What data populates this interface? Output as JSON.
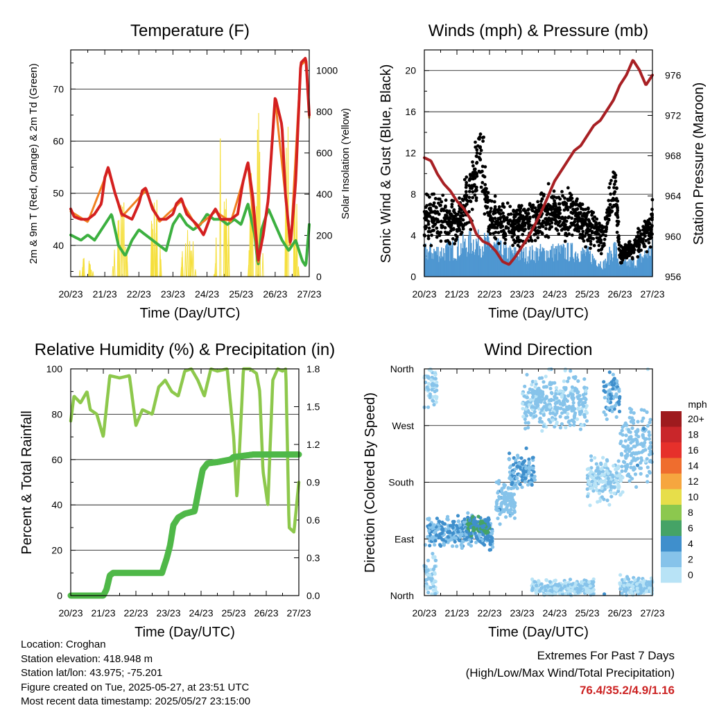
{
  "charts": {
    "temperature": {
      "title": "Temperature (F)",
      "ylabel_left": "2m & 9m T (Red, Orange) & 2m Td (Green)",
      "ylabel_right": "Solar Insolation (Yellow)",
      "xlabel": "Time (Day/UTC)"
    },
    "winds": {
      "title": "Winds (mph) & Pressure (mb)",
      "ylabel_left": "Sonic Wind & Gust (Blue, Black)",
      "ylabel_right": "Station Pressure (Maroon)",
      "xlabel": "Time (Day/UTC)"
    },
    "humidity": {
      "title": "Relative Humidity (%) & Precipitation (in)",
      "ylabel_left": "Percent & Total Rainfall",
      "xlabel": "Time (Day/UTC)"
    },
    "direction": {
      "title": "Wind Direction",
      "ylabel_left": "Direction (Colored By Speed)",
      "xlabel": "Time (Day/UTC)",
      "colorbar_title": "mph"
    }
  },
  "chart_data": [
    {
      "type": "line",
      "title": "Temperature (F)",
      "xlabel": "Time (Day/UTC)",
      "ylabel": "2m & 9m T (Red, Orange) & 2m Td (Green)",
      "ylabel_right": "Solar Insolation (Yellow)",
      "x_ticks": [
        "20/23",
        "21/23",
        "22/23",
        "23/23",
        "24/23",
        "25/23",
        "26/23",
        "27/23"
      ],
      "ylim": [
        34,
        77.5
      ],
      "yticks": [
        40,
        50,
        60,
        70
      ],
      "ylim_right": [
        0,
        1100
      ],
      "yticks_right": [
        0,
        200,
        400,
        600,
        800,
        1000
      ],
      "grid": true,
      "series": [
        {
          "name": "2m T",
          "color": "#d42020",
          "axis": "left",
          "x": [
            0,
            0.1,
            0.3,
            0.5,
            0.7,
            0.9,
            1.0,
            1.1,
            1.3,
            1.5,
            1.8,
            2.0,
            2.1,
            2.2,
            2.4,
            2.6,
            2.8,
            3.0,
            3.1,
            3.25,
            3.4,
            3.7,
            3.9,
            4.1,
            4.25,
            4.4,
            4.7,
            4.9,
            5.05,
            5.2,
            5.35,
            5.5,
            5.65,
            5.8,
            6.0,
            6.2,
            6.3,
            6.45,
            6.6,
            6.75,
            6.9,
            7.0
          ],
          "values": [
            47,
            45.5,
            45,
            45,
            46,
            48,
            53,
            55,
            50,
            46,
            45,
            48,
            50.5,
            51,
            47,
            45,
            45,
            46,
            48,
            49,
            46,
            44,
            42,
            45.5,
            47,
            45,
            45,
            46,
            52,
            56,
            49,
            37,
            42,
            49,
            68.5,
            63,
            50,
            40,
            52,
            75,
            76,
            65
          ]
        },
        {
          "name": "9m T",
          "color": "#f08020",
          "axis": "left",
          "x": [
            0,
            0.5,
            1.1,
            1.5,
            2.2,
            2.6,
            3.25,
            3.7,
            4.25,
            4.7,
            5.2,
            5.5,
            5.8,
            6.0,
            6.3,
            6.45,
            6.75,
            6.9,
            7.0
          ],
          "values": [
            46.5,
            44.5,
            54.5,
            45.5,
            50.5,
            44.5,
            48.5,
            43.5,
            46.5,
            44.5,
            55.5,
            36.5,
            48.5,
            68,
            49.5,
            39.5,
            74.5,
            75.5,
            64.5
          ]
        },
        {
          "name": "2m Td",
          "color": "#3cb040",
          "axis": "left",
          "x": [
            0,
            0.3,
            0.5,
            0.7,
            1.0,
            1.2,
            1.4,
            1.6,
            1.8,
            2.0,
            2.2,
            2.4,
            2.6,
            2.8,
            3.0,
            3.2,
            3.4,
            3.6,
            3.8,
            4.0,
            4.2,
            4.4,
            4.6,
            4.8,
            5.0,
            5.2,
            5.4,
            5.5,
            5.6,
            5.8,
            6.0,
            6.2,
            6.4,
            6.6,
            6.8,
            6.9,
            7.0
          ],
          "values": [
            42,
            41,
            42,
            41,
            44,
            46,
            40,
            38,
            41,
            43,
            42,
            41,
            40,
            39,
            44,
            46,
            44,
            43,
            44,
            46,
            45,
            45,
            44,
            45,
            44,
            48,
            42,
            36,
            43,
            47,
            44,
            41,
            39,
            41,
            37,
            36,
            44
          ]
        },
        {
          "name": "Solar Insolation",
          "color": "#f5df3c",
          "axis": "right",
          "peak_days": [
            0.45,
            1.45,
            2.45,
            3.45,
            4.45,
            5.45,
            6.45
          ],
          "peak_values": [
            120,
            520,
            450,
            310,
            780,
            920,
            1080
          ]
        }
      ]
    },
    {
      "type": "scatter",
      "title": "Winds (mph) & Pressure (mb)",
      "xlabel": "Time (Day/UTC)",
      "ylabel": "Sonic Wind & Gust (Blue, Black)",
      "ylabel_right": "Station Pressure (Maroon)",
      "x_ticks": [
        "20/23",
        "21/23",
        "22/23",
        "23/23",
        "24/23",
        "25/23",
        "26/23",
        "27/23"
      ],
      "ylim": [
        0,
        22
      ],
      "yticks": [
        0,
        4,
        8,
        12,
        16,
        20
      ],
      "ylim_right": [
        956,
        978.5
      ],
      "yticks_right": [
        956,
        960,
        964,
        968,
        972,
        976
      ],
      "grid": true,
      "series": [
        {
          "name": "Gust",
          "color": "#000000",
          "marker": "dot",
          "x": [
            0,
            0.5,
            1.0,
            1.5,
            1.7,
            2.0,
            2.5,
            3.0,
            3.5,
            4.0,
            4.5,
            5.0,
            5.5,
            5.85,
            6.0,
            6.5,
            7.0
          ],
          "values": [
            5.5,
            6,
            5,
            9,
            12,
            6,
            5,
            5,
            6,
            6,
            6,
            5,
            4,
            9,
            2,
            3,
            5
          ]
        },
        {
          "name": "Sonic Wind",
          "color": "#4f97d1",
          "marker": "bar",
          "x": [
            0,
            0.5,
            1.0,
            1.5,
            2.0,
            2.5,
            3.0,
            3.5,
            4.0,
            4.5,
            5.0,
            5.5,
            5.85,
            6.0,
            6.5,
            7.0
          ],
          "values": [
            2.5,
            2.5,
            2.8,
            3.5,
            3.2,
            2.4,
            2.2,
            2.4,
            2.5,
            2.5,
            2.3,
            1.2,
            3.0,
            1.2,
            1.5,
            2.8
          ]
        },
        {
          "name": "Station Pressure",
          "color": "#a82024",
          "axis": "right",
          "x": [
            0,
            0.2,
            0.4,
            0.6,
            0.8,
            1.0,
            1.2,
            1.4,
            1.6,
            1.8,
            2.0,
            2.2,
            2.4,
            2.6,
            2.8,
            3.0,
            3.2,
            3.4,
            3.6,
            3.8,
            4.0,
            4.2,
            4.4,
            4.6,
            4.8,
            5.0,
            5.2,
            5.4,
            5.6,
            5.8,
            6.0,
            6.2,
            6.4,
            6.6,
            6.8,
            7.0
          ],
          "values": [
            967.8,
            967.5,
            966.2,
            965.2,
            964.5,
            963.5,
            962.8,
            961.8,
            960.2,
            959.5,
            959.2,
            958.5,
            957.5,
            957.2,
            958.0,
            959.0,
            960.0,
            961.2,
            962.5,
            964.0,
            965.5,
            966.5,
            967.5,
            968.5,
            969.0,
            970.0,
            971.0,
            971.5,
            972.5,
            973.5,
            975.0,
            976.0,
            977.5,
            976.5,
            975.0,
            976.0
          ]
        }
      ]
    },
    {
      "type": "line",
      "title": "Relative Humidity (%) & Precipitation (in)",
      "xlabel": "Time (Day/UTC)",
      "ylabel": "Percent & Total Rainfall",
      "x_ticks": [
        "20/23",
        "21/23",
        "22/23",
        "23/23",
        "24/23",
        "25/23",
        "26/23",
        "27/23"
      ],
      "ylim": [
        0,
        100
      ],
      "yticks": [
        0,
        20,
        40,
        60,
        80,
        100
      ],
      "ylim_right": [
        0,
        1.8
      ],
      "yticks_right": [
        "0.0",
        "0.3",
        "0.6",
        "0.9",
        "1.2",
        "1.5",
        "1.8"
      ],
      "grid": true,
      "series": [
        {
          "name": "Relative Humidity",
          "color": "#8dc84c",
          "axis": "left",
          "x": [
            0,
            0.1,
            0.3,
            0.5,
            0.6,
            0.8,
            1.0,
            1.2,
            1.5,
            1.8,
            2.0,
            2.2,
            2.5,
            2.7,
            2.9,
            3.1,
            3.3,
            3.5,
            3.7,
            3.9,
            4.1,
            4.3,
            4.5,
            4.8,
            5.0,
            5.1,
            5.2,
            5.3,
            5.35,
            5.5,
            5.7,
            5.8,
            5.9,
            6.05,
            6.2,
            6.35,
            6.5,
            6.6,
            6.7,
            6.85,
            7.0
          ],
          "values": [
            77,
            88,
            85,
            90,
            82,
            80,
            70,
            97,
            96,
            97,
            75,
            82,
            80,
            92,
            95,
            90,
            88,
            99,
            100,
            95,
            88,
            100,
            99,
            100,
            70,
            43,
            70,
            100,
            100,
            100,
            98,
            90,
            55,
            40,
            95,
            100,
            99,
            100,
            30,
            28,
            50
          ]
        },
        {
          "name": "Total Rainfall",
          "color": "#4fb848",
          "axis": "right",
          "x": [
            0,
            0.5,
            1.0,
            1.1,
            1.2,
            1.3,
            2.5,
            2.8,
            2.95,
            3.05,
            3.15,
            3.3,
            3.5,
            3.8,
            3.95,
            4.05,
            4.2,
            4.5,
            4.9,
            5.0,
            5.6,
            5.8,
            7.0
          ],
          "values": [
            0,
            0,
            0,
            0.05,
            0.16,
            0.18,
            0.18,
            0.18,
            0.3,
            0.4,
            0.56,
            0.62,
            0.65,
            0.67,
            0.87,
            1.0,
            1.05,
            1.06,
            1.08,
            1.1,
            1.12,
            1.12,
            1.12
          ]
        }
      ]
    },
    {
      "type": "scatter",
      "title": "Wind Direction",
      "xlabel": "Time (Day/UTC)",
      "ylabel": "Direction (Colored By Speed)",
      "x_ticks": [
        "20/23",
        "21/23",
        "22/23",
        "23/23",
        "24/23",
        "25/23",
        "26/23",
        "27/23"
      ],
      "yticks": [
        "North",
        "East",
        "South",
        "West",
        "North"
      ],
      "ylim": [
        0,
        360
      ],
      "grid": true,
      "colorbar": {
        "title": "mph",
        "labels": [
          "0",
          "2",
          "4",
          "6",
          "8",
          "10",
          "12",
          "14",
          "16",
          "18",
          "20+"
        ],
        "colors": [
          "#b8e3f6",
          "#86c3ea",
          "#3f8fcc",
          "#45a366",
          "#8cc84e",
          "#e7de4a",
          "#f6a63f",
          "#ef6d2e",
          "#e6302b",
          "#c9262a",
          "#9e1b1e"
        ]
      },
      "clusters": [
        {
          "day_start": 0.0,
          "day_end": 0.4,
          "dir_center": 30,
          "dir_spread": 45,
          "speed": 1
        },
        {
          "day_start": 0.0,
          "day_end": 0.4,
          "dir_center": 335,
          "dir_spread": 35,
          "speed": 1
        },
        {
          "day_start": 0.1,
          "day_end": 2.1,
          "dir_center": 100,
          "dir_spread": 25,
          "speed": 3
        },
        {
          "day_start": 1.3,
          "day_end": 2.0,
          "dir_center": 110,
          "dir_spread": 15,
          "speed": 5
        },
        {
          "day_start": 2.2,
          "day_end": 2.8,
          "dir_center": 150,
          "dir_spread": 30,
          "speed": 2
        },
        {
          "day_start": 2.6,
          "day_end": 3.4,
          "dir_center": 200,
          "dir_spread": 30,
          "speed": 3
        },
        {
          "day_start": 3.0,
          "day_end": 5.0,
          "dir_center": 305,
          "dir_spread": 40,
          "speed": 1.5
        },
        {
          "day_start": 3.3,
          "day_end": 5.2,
          "dir_center": 12,
          "dir_spread": 12,
          "speed": 1
        },
        {
          "day_start": 5.0,
          "day_end": 6.1,
          "dir_center": 185,
          "dir_spread": 35,
          "speed": 1
        },
        {
          "day_start": 5.5,
          "day_end": 6.0,
          "dir_center": 320,
          "dir_spread": 40,
          "speed": 3
        },
        {
          "day_start": 6.0,
          "day_end": 7.0,
          "dir_center": 240,
          "dir_spread": 60,
          "speed": 2
        },
        {
          "day_start": 6.0,
          "day_end": 7.0,
          "dir_center": 15,
          "dir_spread": 15,
          "speed": 1
        }
      ]
    }
  ],
  "info": {
    "location": "Location: Croghan",
    "elevation": "Station elevation: 418.948 m",
    "latlon": "Station lat/lon: 43.975; -75.201",
    "created": "Figure created on Tue, 2025-05-27, at 23:51 UTC",
    "recent": "Most recent data timestamp: 2025/05/27 23:15:00"
  },
  "extremes": {
    "title": "Extremes For Past 7 Days",
    "subtitle": "(High/Low/Max Wind/Total Precipitation)",
    "values": "76.4/35.2/4.9/1.16"
  }
}
